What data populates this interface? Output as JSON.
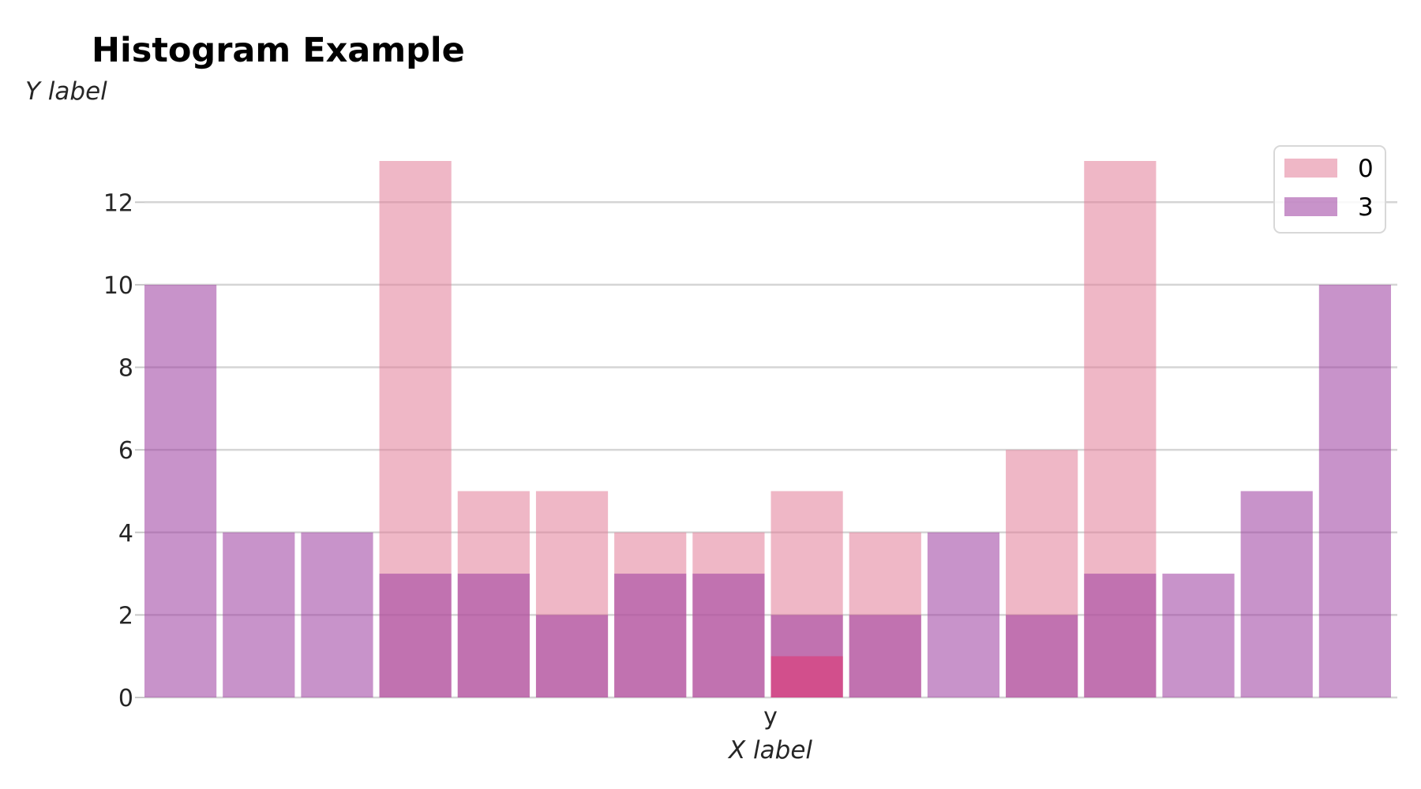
{
  "chart_data": {
    "type": "bar",
    "title": "Histogram Example",
    "xlabel": "X label",
    "ylabel": "Y label",
    "x_tick_label": "y",
    "ylim": [
      0,
      13.65
    ],
    "y_ticks": [
      0,
      2,
      4,
      6,
      8,
      10,
      12
    ],
    "grid": "horizontal",
    "legend_position": "top-right",
    "bin_count": 16,
    "series": [
      {
        "name": "0",
        "color": "#e27c97",
        "opacity": 0.55,
        "values": [
          0,
          0,
          0,
          13,
          5,
          5,
          4,
          4,
          5,
          4,
          0,
          6,
          13,
          0,
          0,
          0
        ]
      },
      {
        "name": "3",
        "color": "#9b3a9e",
        "opacity": 0.55,
        "values": [
          10,
          4,
          4,
          3,
          3,
          2,
          3,
          3,
          2,
          2,
          4,
          2,
          3,
          3,
          5,
          10
        ]
      }
    ],
    "extra_bars": [
      {
        "bin": 8,
        "value": 1,
        "color": "#db3c7a",
        "opacity": 0.65
      }
    ]
  }
}
